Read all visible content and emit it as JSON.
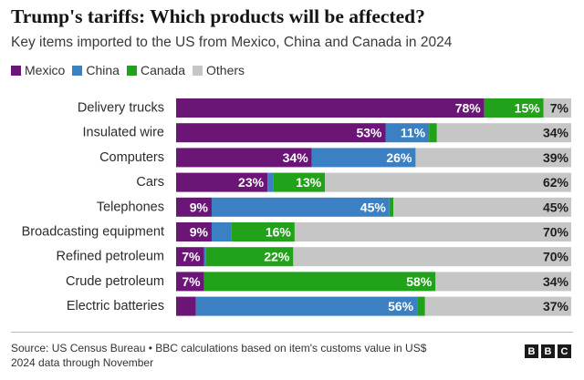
{
  "header": {
    "title": "Trump's tariffs: Which products will be affected?",
    "subtitle": "Key items imported to the US from Mexico, China and Canada in 2024"
  },
  "colors": {
    "Mexico": "#6b1577",
    "China": "#3b80c3",
    "Canada": "#22a11a",
    "Others": "#c6c6c6"
  },
  "chart_data": {
    "type": "bar",
    "orientation": "horizontal",
    "stacked": true,
    "unit": "%",
    "xlim": [
      0,
      100
    ],
    "grid": false,
    "legend_position": "top-left",
    "categories": [
      "Delivery trucks",
      "Insulated wire",
      "Computers",
      "Cars",
      "Telephones",
      "Broadcasting equipment",
      "Refined petroleum",
      "Crude petroleum",
      "Electric batteries"
    ],
    "series": [
      {
        "name": "Mexico",
        "values": [
          78,
          53,
          34,
          23,
          9,
          9,
          7,
          7,
          5
        ]
      },
      {
        "name": "China",
        "values": [
          0,
          11,
          26,
          1.5,
          45,
          5,
          0.5,
          0,
          56
        ]
      },
      {
        "name": "Canada",
        "values": [
          15,
          2,
          0,
          13,
          1,
          16,
          22,
          58,
          2
        ]
      },
      {
        "name": "Others",
        "values": [
          7,
          34,
          39,
          62,
          45,
          70,
          70,
          34,
          37
        ]
      }
    ],
    "data_labels": [
      [
        "78%",
        null,
        "15%",
        "7%"
      ],
      [
        "53%",
        "11%",
        null,
        "34%"
      ],
      [
        "34%",
        "26%",
        null,
        "39%"
      ],
      [
        "23%",
        null,
        "13%",
        "62%"
      ],
      [
        "9%",
        "45%",
        null,
        "45%"
      ],
      [
        "9%",
        null,
        "16%",
        "70%"
      ],
      [
        "7%",
        null,
        "22%",
        "70%"
      ],
      [
        "7%",
        null,
        "58%",
        "34%"
      ],
      [
        null,
        "56%",
        null,
        "37%"
      ]
    ]
  },
  "footer": {
    "source_line1": "Source: US Census Bureau • BBC calculations based on item's customs value in US$",
    "source_line2": "2024 data through November",
    "logo_letters": [
      "B",
      "B",
      "C"
    ]
  }
}
